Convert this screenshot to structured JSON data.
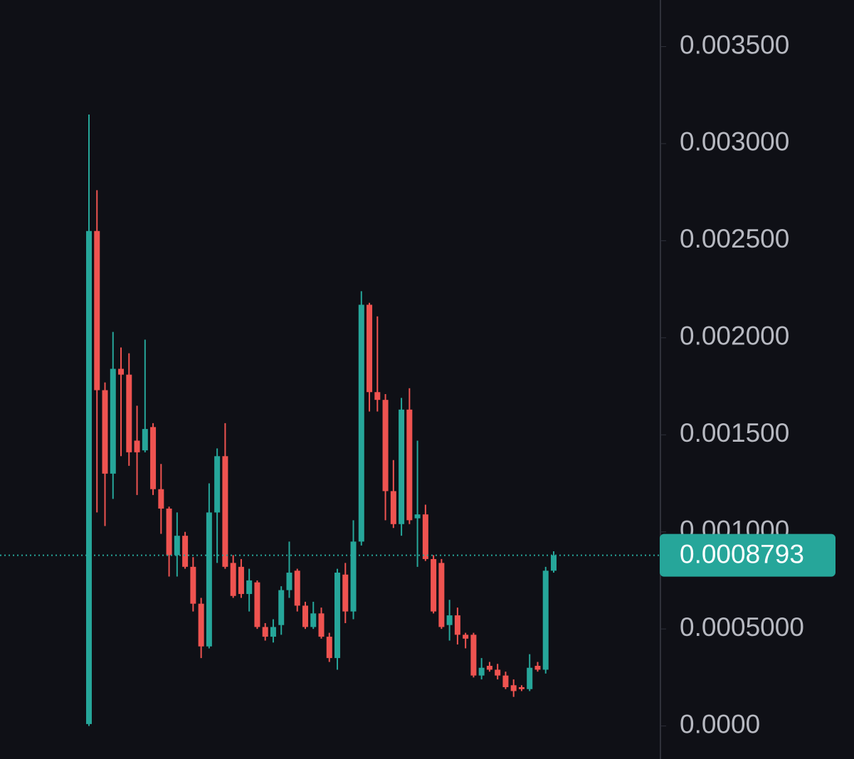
{
  "chart_data": {
    "type": "candlestick",
    "open": [
      1e-05,
      0.00255,
      0.00173,
      0.0013,
      0.00184,
      0.00181,
      0.00147,
      0.00142,
      0.00154,
      0.00122,
      0.00112,
      0.00088,
      0.00098,
      0.00082,
      0.00063,
      0.00041,
      0.0011,
      0.00139,
      0.00084,
      0.00082,
      0.00068,
      0.00074,
      0.00051,
      0.00046,
      0.00052,
      0.0007,
      0.0008,
      0.00062,
      0.00051,
      0.00058,
      0.00046,
      0.00035,
      0.00078,
      0.00059,
      0.00095,
      0.00217,
      0.00172,
      0.00168,
      0.00121,
      0.00104,
      0.00163,
      0.00107,
      0.00109,
      0.00086,
      0.00084,
      0.00052,
      0.00057,
      0.00047,
      0.00047,
      0.00026,
      0.00031,
      0.00029,
      0.00026,
      0.00021,
      0.0002,
      0.00019,
      0.00031,
      0.00029,
      0.0008
    ],
    "high": [
      0.00315,
      0.00276,
      0.00177,
      0.00203,
      0.00195,
      0.00192,
      0.00165,
      0.00199,
      0.00156,
      0.00135,
      0.00113,
      0.0011,
      0.001,
      0.00087,
      0.00066,
      0.00125,
      0.00143,
      0.00156,
      0.00088,
      0.00086,
      0.00081,
      0.00075,
      0.00053,
      0.00055,
      0.00072,
      0.00095,
      0.00081,
      0.00064,
      0.00064,
      0.00061,
      0.00048,
      0.00081,
      0.00084,
      0.00106,
      0.00224,
      0.00218,
      0.00211,
      0.00171,
      0.00137,
      0.00169,
      0.00174,
      0.00147,
      0.00114,
      0.00088,
      0.00086,
      0.00065,
      0.00061,
      0.00048,
      0.00048,
      0.00035,
      0.00033,
      0.00032,
      0.00028,
      0.00024,
      0.00021,
      0.00037,
      0.00033,
      0.00082,
      0.0009
    ],
    "low": [
      0.0,
      0.0011,
      0.00103,
      0.00117,
      0.00139,
      0.00134,
      0.00119,
      0.00141,
      0.00119,
      0.00099,
      0.00077,
      0.00077,
      0.00081,
      0.00059,
      0.00035,
      0.0004,
      0.00084,
      0.00081,
      0.00066,
      0.00066,
      0.00059,
      0.0005,
      0.00044,
      0.00043,
      0.00047,
      0.00066,
      0.00059,
      0.0005,
      0.0005,
      0.00045,
      0.00033,
      0.00029,
      0.00053,
      0.00055,
      0.00093,
      0.00162,
      0.00162,
      0.00106,
      0.00102,
      0.00098,
      0.00104,
      0.00082,
      0.00085,
      0.00058,
      0.0005,
      0.00044,
      0.00042,
      0.0004,
      0.00025,
      0.00024,
      0.00028,
      0.00024,
      0.00019,
      0.00015,
      0.00018,
      0.00018,
      0.00028,
      0.00027,
      0.00079
    ],
    "close": [
      0.00255,
      0.00173,
      0.0013,
      0.00184,
      0.00181,
      0.00141,
      0.00141,
      0.00153,
      0.00122,
      0.00112,
      0.00088,
      0.00098,
      0.00082,
      0.00063,
      0.00041,
      0.0011,
      0.00139,
      0.00082,
      0.00067,
      0.00068,
      0.00075,
      0.00051,
      0.00046,
      0.00051,
      0.0007,
      0.00079,
      0.00062,
      0.00051,
      0.00058,
      0.00046,
      0.00035,
      0.00079,
      0.00059,
      0.00095,
      0.00217,
      0.00172,
      0.00168,
      0.00121,
      0.00104,
      0.00163,
      0.00106,
      0.00109,
      0.00086,
      0.00059,
      0.00051,
      0.00057,
      0.00047,
      0.00045,
      0.00026,
      0.0003,
      0.00029,
      0.00026,
      0.0002,
      0.00018,
      0.00019,
      0.0003,
      0.00029,
      0.0008,
      0.0008793
    ],
    "up_color": "#26a69a",
    "down_color": "#ef5350",
    "last_price": 0.0008793,
    "ylim": [
      -0.00017,
      0.00374
    ],
    "yticks": [
      {
        "value": 0,
        "label": "0.0000"
      },
      {
        "value": 0.0005,
        "label": "0.0005000"
      },
      {
        "value": 0.001,
        "label": "0.001000"
      },
      {
        "value": 0.0015,
        "label": "0.001500"
      },
      {
        "value": 0.002,
        "label": "0.002000"
      },
      {
        "value": 0.0025,
        "label": "0.002500"
      },
      {
        "value": 0.003,
        "label": "0.003000"
      },
      {
        "value": 0.0035,
        "label": "0.003500"
      }
    ]
  }
}
